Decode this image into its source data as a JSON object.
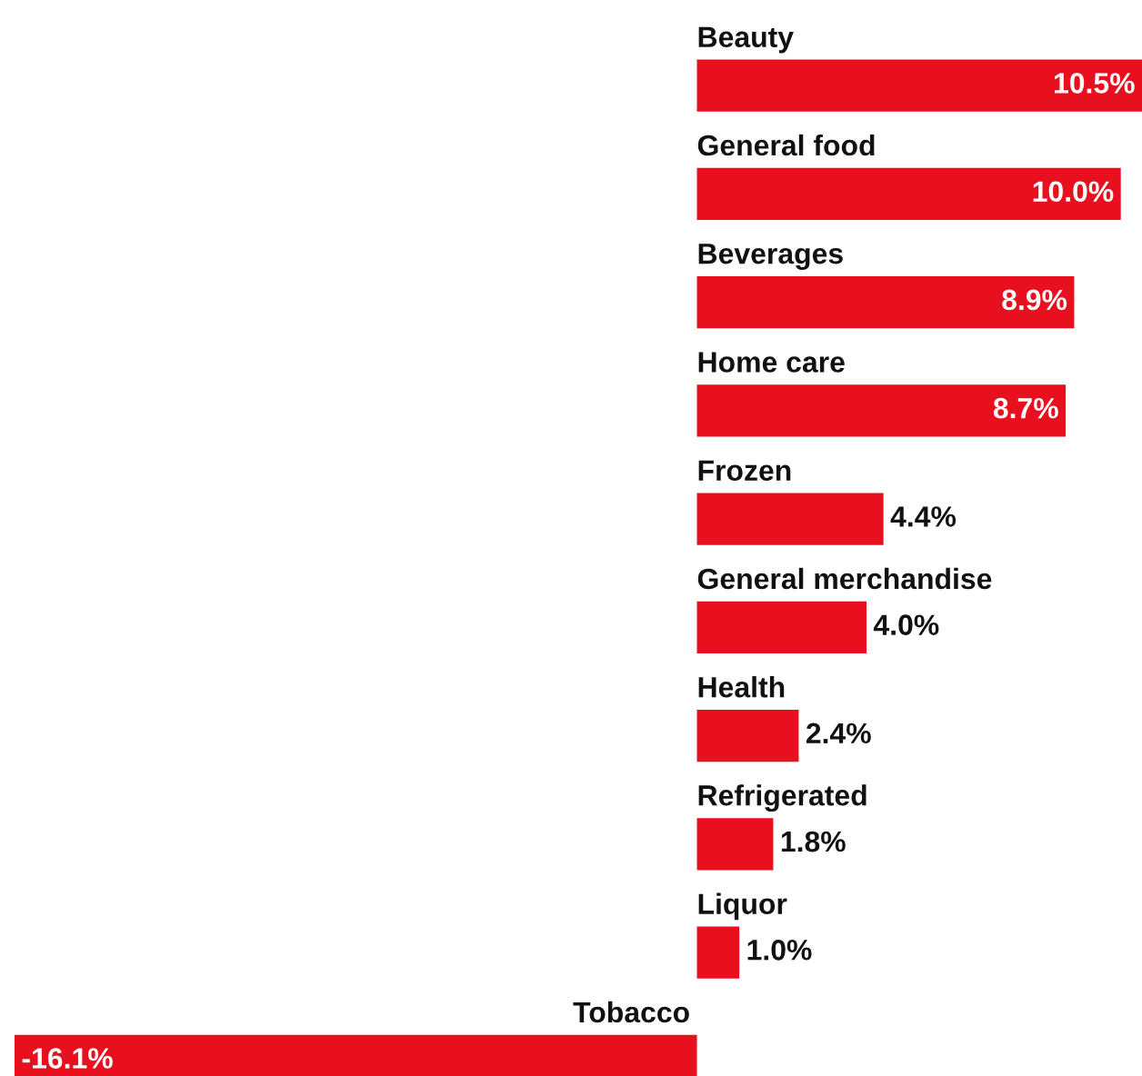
{
  "chart_data": {
    "type": "bar",
    "orientation": "horizontal",
    "categories": [
      "Beauty",
      "General food",
      "Beverages",
      "Home care",
      "Frozen",
      "General merchandise",
      "Health",
      "Refrigerated",
      "Liquor",
      "Tobacco"
    ],
    "values": [
      10.5,
      10.0,
      8.9,
      8.7,
      4.4,
      4.0,
      2.4,
      1.8,
      1.0,
      -16.1
    ],
    "value_labels": [
      "10.5%",
      "10.0%",
      "8.9%",
      "8.7%",
      "4.4%",
      "4.0%",
      "2.4%",
      "1.8%",
      "1.0%",
      "-16.1%"
    ],
    "color": "#e8101e"
  }
}
